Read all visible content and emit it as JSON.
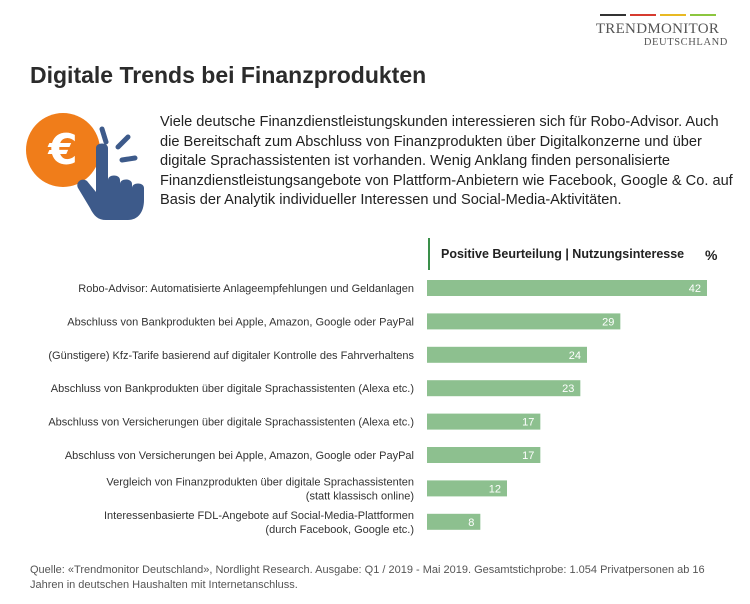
{
  "logo": {
    "main": "TRENDMONITOR",
    "sub": "DEUTSCHLAND",
    "stripe_colors": [
      "#333333",
      "#d63b2f",
      "#e8b923",
      "#8cc63f"
    ]
  },
  "title": "Digitale Trends bei Finanzprodukten",
  "icon": {
    "name": "euro-coin-hand-icon",
    "coin_color": "#f07d1a",
    "hand_color": "#3d5a8a"
  },
  "intro": "Viele deutsche Finanzdienstleistungskunden interessieren sich für Robo-Advisor. Auch die Bereitschaft zum Abschluss von Finanzprodukten über Digitalkonzerne und über digitale Sprachassistenten ist vorhanden. Wenig Anklang finden personalisierte Finanzdienstleistungsangebote von Plattform-Anbietern wie Facebook, Google & Co. auf Basis der Analytik individueller Interessen und Social-Media-Aktivitäten.",
  "chart_data": {
    "type": "bar",
    "orientation": "horizontal",
    "legend": "Positive Beurteilung | Nutzungsinteresse",
    "unit": "%",
    "bar_color": "#8dc08f",
    "xlim": [
      0,
      42
    ],
    "grid": false,
    "categories": [
      [
        "Robo-Advisor: Automatisierte Anlageempfehlungen und Geldanlagen"
      ],
      [
        "Abschluss von Bankprodukten bei Apple, Amazon, Google oder PayPal"
      ],
      [
        "(Günstigere) Kfz-Tarife basierend auf digitaler Kontrolle des Fahrverhaltens"
      ],
      [
        "Abschluss von Bankprodukten über digitale Sprachassistenten (Alexa etc.)"
      ],
      [
        "Abschluss von Versicherungen über digitale Sprachassistenten (Alexa etc.)"
      ],
      [
        "Abschluss von Versicherungen bei Apple, Amazon, Google oder PayPal"
      ],
      [
        "Vergleich von Finanzprodukten über digitale Sprachassistenten",
        "(statt klassisch online)"
      ],
      [
        "Interessenbasierte FDL-Angebote auf Social-Media-Plattformen",
        "(durch Facebook, Google etc.)"
      ]
    ],
    "values": [
      42,
      29,
      24,
      23,
      17,
      17,
      12,
      8
    ]
  },
  "footnote": "Quelle: «Trendmonitor Deutschland», Nordlight Research. Ausgabe: Q1 / 2019 -  Mai 2019. Gesamtstichprobe: 1.054 Privatpersonen ab 16 Jahren in deutschen Haushalten mit Internetanschluss."
}
